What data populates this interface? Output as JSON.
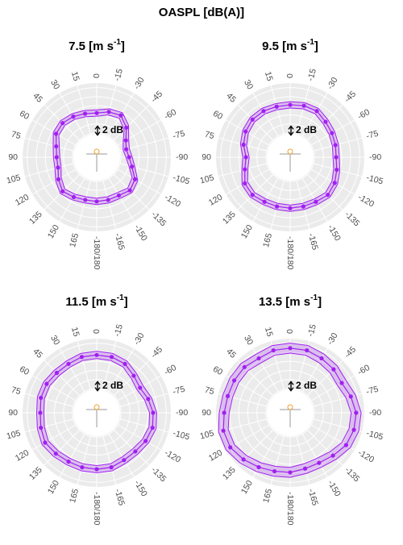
{
  "title": "OASPL [dB(A)]",
  "chart_data": [
    {
      "type": "polar",
      "title": {
        "text": "7.5 [m s",
        "sup": "-1",
        "end": "]"
      },
      "color": "#a020f0",
      "theta": [
        0,
        -15,
        -30,
        -45,
        -60,
        -75,
        -90,
        -105,
        -120,
        -135,
        -150,
        -165,
        180,
        165,
        150,
        135,
        120,
        105,
        90,
        75,
        60,
        45,
        30,
        15
      ],
      "values": [
        64.4,
        65.0,
        65.3,
        63.9,
        62.1,
        61.4,
        61.8,
        62.7,
        64.4,
        65.0,
        64.4,
        64.4,
        64.4,
        64.4,
        64.8,
        65.3,
        64.4,
        63.5,
        63.5,
        63.9,
        65.0,
        65.3,
        65.0,
        64.6
      ],
      "ci": 0.7,
      "rlim": [
        60,
        71
      ],
      "rticks": [
        60,
        62,
        64,
        66,
        68,
        70
      ],
      "thetaticks": [
        0,
        -15,
        -30,
        -45,
        -60,
        -75,
        -90,
        -105,
        -120,
        -135,
        -150,
        -165,
        {
          "value": 180,
          "label": "-180/180"
        },
        165,
        150,
        135,
        120,
        105,
        90,
        75,
        60,
        45,
        30,
        15
      ],
      "scale_bar": {
        "value": 2,
        "label": "2 dB"
      }
    },
    {
      "type": "polar",
      "title": {
        "text": "9.5 [m s",
        "sup": "-1",
        "end": "]"
      },
      "color": "#a020f0",
      "theta": [
        0,
        -15,
        -30,
        -45,
        -60,
        -75,
        -90,
        -105,
        -120,
        -135,
        -150,
        -165,
        180,
        165,
        150,
        135,
        120,
        105,
        90,
        75,
        60,
        45,
        30,
        15
      ],
      "values": [
        66.2,
        66.4,
        66.4,
        65.7,
        65.3,
        65.0,
        64.8,
        65.3,
        66.0,
        66.4,
        66.0,
        65.9,
        65.9,
        65.9,
        66.0,
        66.4,
        66.2,
        65.0,
        64.4,
        65.3,
        66.0,
        66.4,
        66.4,
        66.2
      ],
      "ci": 0.7,
      "rlim": [
        60,
        71
      ],
      "rticks": [
        60,
        62,
        64,
        66,
        68,
        70
      ],
      "thetaticks": [
        0,
        -15,
        -30,
        -45,
        -60,
        -75,
        -90,
        -105,
        -120,
        -135,
        -150,
        -165,
        {
          "value": 180,
          "label": "-180/180"
        },
        165,
        150,
        135,
        120,
        105,
        90,
        75,
        60,
        45,
        30,
        15
      ],
      "scale_bar": {
        "value": 2,
        "label": "2 dB"
      }
    },
    {
      "type": "polar",
      "title": {
        "text": "11.5 [m s",
        "sup": "-1",
        "end": "]"
      },
      "color": "#a020f0",
      "theta": [
        0,
        -15,
        -30,
        -45,
        -60,
        -75,
        -90,
        -105,
        -120,
        -135,
        -150,
        -165,
        180,
        165,
        150,
        135,
        120,
        105,
        90,
        75,
        60,
        45,
        30,
        15
      ],
      "values": [
        67.4,
        67.4,
        67.1,
        66.2,
        65.7,
        66.4,
        67.1,
        67.4,
        67.1,
        66.7,
        66.7,
        67.1,
        67.1,
        67.1,
        67.1,
        67.4,
        67.8,
        67.4,
        67.1,
        67.4,
        67.4,
        67.1,
        67.1,
        67.4
      ],
      "ci": 0.8,
      "rlim": [
        60,
        71
      ],
      "rticks": [
        60,
        62,
        64,
        66,
        68,
        70
      ],
      "thetaticks": [
        0,
        -15,
        -30,
        -45,
        -60,
        -75,
        -90,
        -105,
        -120,
        -135,
        -150,
        -165,
        {
          "value": 180,
          "label": "-180/180"
        },
        165,
        150,
        135,
        120,
        105,
        90,
        75,
        60,
        45,
        30,
        15
      ],
      "scale_bar": {
        "value": 2,
        "label": "2 dB"
      }
    },
    {
      "type": "polar",
      "title": {
        "text": "13.5 [m s",
        "sup": "-1",
        "end": "]"
      },
      "color": "#a020f0",
      "theta": [
        0,
        -15,
        -30,
        -45,
        -60,
        -75,
        -90,
        -105,
        -120,
        -135,
        -150,
        -165,
        180,
        165,
        150,
        135,
        120,
        105,
        90,
        75,
        60,
        45,
        30,
        15
      ],
      "values": [
        68.9,
        68.9,
        68.5,
        68.2,
        67.8,
        68.5,
        69.2,
        69.2,
        68.9,
        68.0,
        67.4,
        67.4,
        67.8,
        68.0,
        68.5,
        69.2,
        69.9,
        69.9,
        69.2,
        68.9,
        68.9,
        68.9,
        68.5,
        68.9
      ],
      "ci": 1.1,
      "rlim": [
        60,
        71
      ],
      "rticks": [
        60,
        62,
        64,
        66,
        68,
        70
      ],
      "thetaticks": [
        0,
        -15,
        -30,
        -45,
        -60,
        -75,
        -90,
        -105,
        -120,
        -135,
        -150,
        -165,
        {
          "value": 180,
          "label": "-180/180"
        },
        165,
        150,
        135,
        120,
        105,
        90,
        75,
        60,
        45,
        30,
        15
      ],
      "scale_bar": {
        "value": 2,
        "label": "2 dB"
      }
    }
  ]
}
